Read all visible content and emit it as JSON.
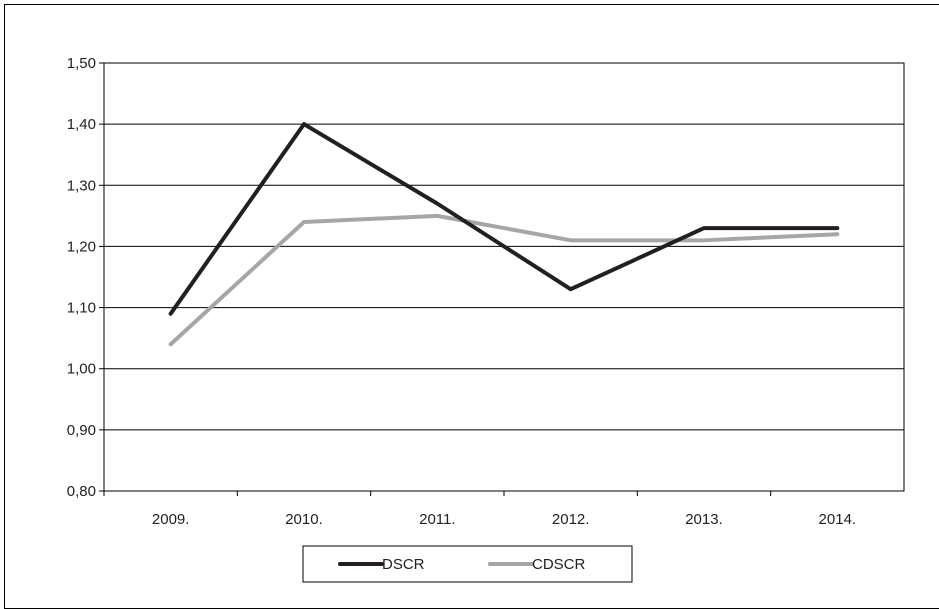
{
  "chart_data": {
    "type": "line",
    "categories": [
      "2009.",
      "2010.",
      "2011.",
      "2012.",
      "2013.",
      "2014."
    ],
    "series": [
      {
        "name": "DSCR",
        "values": [
          1.09,
          1.4,
          1.27,
          1.13,
          1.23,
          1.23
        ],
        "color": "#231f20"
      },
      {
        "name": "CDSCR",
        "values": [
          1.04,
          1.24,
          1.25,
          1.21,
          1.21,
          1.22
        ],
        "color": "#a6a6a6"
      }
    ],
    "y_ticks": [
      "0,80",
      "0,90",
      "1,00",
      "1,10",
      "1,20",
      "1,30",
      "1,40",
      "1,50"
    ],
    "ylim": [
      0.8,
      1.5
    ],
    "grid": "horizontal",
    "legend_position": "bottom"
  }
}
